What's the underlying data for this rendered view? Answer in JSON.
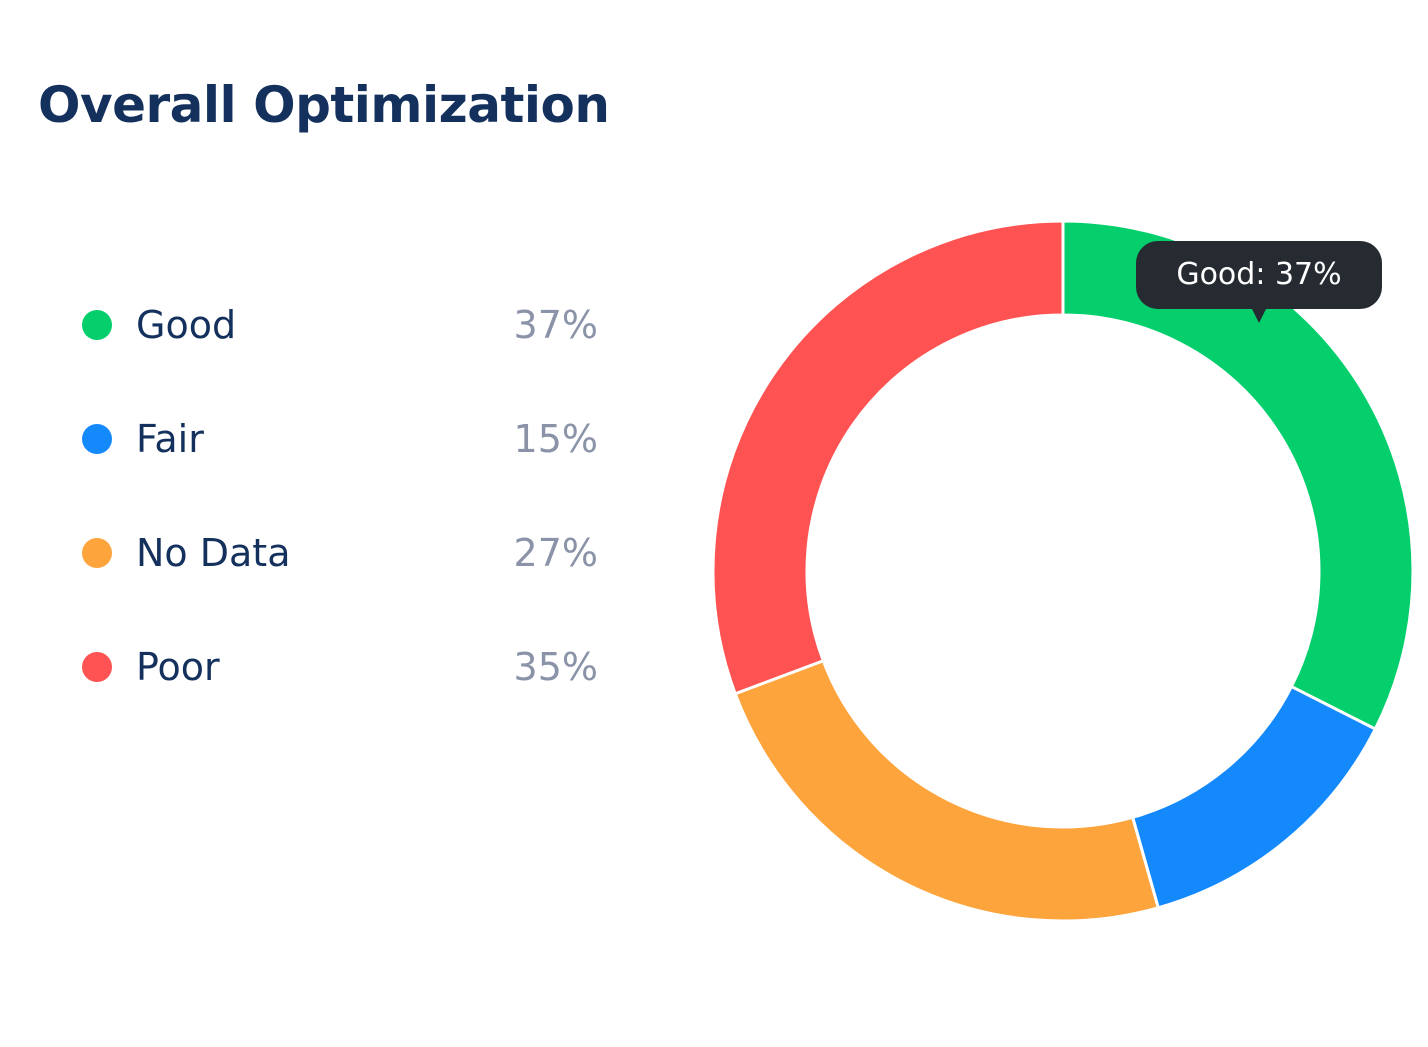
{
  "chart_data": {
    "type": "pie",
    "title": "Overall Optimization",
    "categories": [
      "Good",
      "Fair",
      "No Data",
      "Poor"
    ],
    "values": [
      37,
      15,
      27,
      35
    ],
    "value_labels": [
      "37%",
      "15%",
      "27%",
      "35%"
    ],
    "colors": [
      "#04cf6c",
      "#1489fb",
      "#fda43d",
      "#fe5352"
    ],
    "donut": true,
    "legend_position": "left",
    "tooltip": "Good: 37%"
  }
}
